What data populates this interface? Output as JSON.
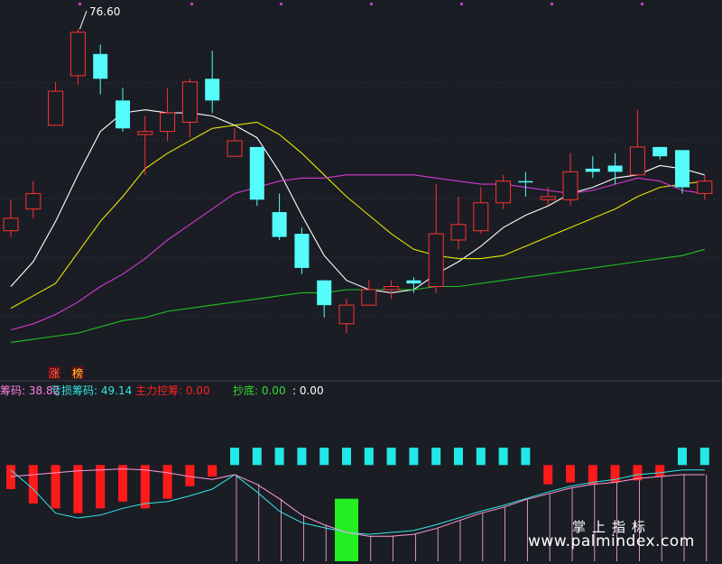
{
  "chart_data": [
    {
      "type": "candlestick",
      "peak_label": "76.60",
      "tags": [
        "涨",
        "榜"
      ],
      "candles": [
        {
          "o": 70.2,
          "c": 70.6,
          "h": 71.2,
          "l": 70.0,
          "color": "up"
        },
        {
          "o": 70.9,
          "c": 71.4,
          "h": 71.8,
          "l": 70.6,
          "color": "up"
        },
        {
          "o": 73.6,
          "c": 74.7,
          "h": 75.0,
          "l": 73.6,
          "color": "up"
        },
        {
          "o": 75.2,
          "c": 76.6,
          "h": 76.7,
          "l": 74.9,
          "color": "up"
        },
        {
          "o": 75.9,
          "c": 75.1,
          "h": 76.2,
          "l": 74.6,
          "color": "down"
        },
        {
          "o": 74.4,
          "c": 73.5,
          "h": 74.8,
          "l": 73.4,
          "color": "down"
        },
        {
          "o": 73.3,
          "c": 73.4,
          "h": 73.9,
          "l": 72.0,
          "color": "up"
        },
        {
          "o": 73.4,
          "c": 74.0,
          "h": 74.8,
          "l": 73.1,
          "color": "up"
        },
        {
          "o": 73.7,
          "c": 75.0,
          "h": 75.1,
          "l": 73.2,
          "color": "up"
        },
        {
          "o": 75.1,
          "c": 74.4,
          "h": 76.0,
          "l": 74.0,
          "color": "down"
        },
        {
          "o": 72.6,
          "c": 73.1,
          "h": 73.5,
          "l": 72.6,
          "color": "up"
        },
        {
          "o": 72.9,
          "c": 71.2,
          "h": 72.9,
          "l": 71.0,
          "color": "down"
        },
        {
          "o": 70.8,
          "c": 70.0,
          "h": 71.4,
          "l": 69.9,
          "color": "down"
        },
        {
          "o": 70.1,
          "c": 69.0,
          "h": 70.3,
          "l": 68.8,
          "color": "down"
        },
        {
          "o": 68.6,
          "c": 67.8,
          "h": 68.6,
          "l": 67.4,
          "color": "down"
        },
        {
          "o": 67.2,
          "c": 67.8,
          "h": 68.0,
          "l": 66.9,
          "color": "up"
        },
        {
          "o": 67.8,
          "c": 68.3,
          "h": 68.6,
          "l": 67.8,
          "color": "up"
        },
        {
          "o": 68.3,
          "c": 68.4,
          "h": 68.6,
          "l": 68.0,
          "color": "up"
        },
        {
          "o": 68.5,
          "c": 68.6,
          "h": 68.7,
          "l": 68.2,
          "color": "down"
        },
        {
          "o": 68.4,
          "c": 70.1,
          "h": 71.7,
          "l": 68.2,
          "color": "up"
        },
        {
          "o": 69.9,
          "c": 70.4,
          "h": 71.3,
          "l": 69.6,
          "color": "up"
        },
        {
          "o": 70.2,
          "c": 71.1,
          "h": 71.6,
          "l": 70.1,
          "color": "up"
        },
        {
          "o": 71.1,
          "c": 71.8,
          "h": 72.0,
          "l": 70.9,
          "color": "up"
        },
        {
          "o": 71.8,
          "c": 71.8,
          "h": 72.1,
          "l": 71.3,
          "color": "down"
        },
        {
          "o": 71.2,
          "c": 71.3,
          "h": 71.6,
          "l": 71.0,
          "color": "up"
        },
        {
          "o": 71.2,
          "c": 72.1,
          "h": 72.7,
          "l": 71.0,
          "color": "up"
        },
        {
          "o": 72.1,
          "c": 72.2,
          "h": 72.6,
          "l": 71.9,
          "color": "down"
        },
        {
          "o": 72.3,
          "c": 72.1,
          "h": 72.7,
          "l": 71.7,
          "color": "down"
        },
        {
          "o": 72.0,
          "c": 72.9,
          "h": 74.1,
          "l": 72.0,
          "color": "up"
        },
        {
          "o": 72.9,
          "c": 72.6,
          "h": 72.9,
          "l": 72.5,
          "color": "down"
        },
        {
          "o": 72.8,
          "c": 71.6,
          "h": 72.8,
          "l": 71.4,
          "color": "down"
        },
        {
          "o": 71.4,
          "c": 71.8,
          "h": 72.0,
          "l": 71.2,
          "color": "up"
        }
      ],
      "ma_lines": [
        {
          "color": "#ffffff",
          "values": [
            68.4,
            69.2,
            70.5,
            72.0,
            73.4,
            74.0,
            74.1,
            74.0,
            74.0,
            73.9,
            73.6,
            73.2,
            72.1,
            70.7,
            69.4,
            68.6,
            68.3,
            68.2,
            68.3,
            68.8,
            69.2,
            69.7,
            70.3,
            70.7,
            71.0,
            71.4,
            71.6,
            71.9,
            72.0,
            72.3,
            72.2,
            72.0
          ]
        },
        {
          "color": "#e8e600",
          "values": [
            67.7,
            68.1,
            68.5,
            69.5,
            70.5,
            71.3,
            72.2,
            72.7,
            73.1,
            73.5,
            73.6,
            73.7,
            73.3,
            72.7,
            72.0,
            71.3,
            70.7,
            70.1,
            69.6,
            69.4,
            69.3,
            69.3,
            69.4,
            69.7,
            70.0,
            70.3,
            70.6,
            70.9,
            71.3,
            71.6,
            71.7,
            71.8
          ]
        },
        {
          "color": "#d43ad4",
          "values": [
            67.0,
            67.2,
            67.5,
            67.9,
            68.4,
            68.8,
            69.3,
            69.9,
            70.4,
            70.9,
            71.4,
            71.6,
            71.8,
            71.9,
            71.9,
            72.0,
            72.0,
            72.0,
            72.0,
            71.9,
            71.8,
            71.7,
            71.7,
            71.6,
            71.5,
            71.4,
            71.5,
            71.7,
            71.9,
            71.8,
            71.5,
            71.4
          ]
        },
        {
          "color": "#1fc21f",
          "values": [
            66.6,
            66.7,
            66.8,
            66.9,
            67.1,
            67.3,
            67.4,
            67.6,
            67.7,
            67.8,
            67.9,
            68.0,
            68.1,
            68.2,
            68.2,
            68.3,
            68.3,
            68.3,
            68.3,
            68.4,
            68.4,
            68.5,
            68.6,
            68.7,
            68.8,
            68.9,
            69.0,
            69.1,
            69.2,
            69.3,
            69.4,
            69.6
          ]
        }
      ],
      "ylim": [
        66.0,
        77.0
      ],
      "grid": true
    },
    {
      "type": "bar",
      "header": [
        {
          "label": "筹码:",
          "value": "38.82",
          "color": "#ff80e0"
        },
        {
          "label": "亏损筹码:",
          "value": "49.14",
          "color": "#33e6e6"
        },
        {
          "label": "主力控筹:",
          "value": "0.00",
          "color": "#ff2020"
        },
        {
          "label": "抄底:",
          "value": "0.00",
          "color": "#33dd33"
        },
        {
          "label": ":",
          "value": "0.00",
          "color": "#ffffff"
        }
      ],
      "baseline": 0,
      "ylim": [
        -100,
        50
      ],
      "bars": [
        {
          "v": -25,
          "c": "red"
        },
        {
          "v": -40,
          "c": "red"
        },
        {
          "v": -45,
          "c": "red"
        },
        {
          "v": -50,
          "c": "red"
        },
        {
          "v": -45,
          "c": "red"
        },
        {
          "v": -38,
          "c": "red"
        },
        {
          "v": -45,
          "c": "red"
        },
        {
          "v": -35,
          "c": "red"
        },
        {
          "v": -22,
          "c": "red"
        },
        {
          "v": -12,
          "c": "red"
        },
        {
          "v": 18,
          "c": "cyan"
        },
        {
          "v": 18,
          "c": "cyan"
        },
        {
          "v": 18,
          "c": "cyan"
        },
        {
          "v": 18,
          "c": "cyan"
        },
        {
          "v": 18,
          "c": "cyan"
        },
        {
          "v": 18,
          "c": "cyan"
        },
        {
          "v": 18,
          "c": "cyan"
        },
        {
          "v": 18,
          "c": "cyan"
        },
        {
          "v": 18,
          "c": "cyan"
        },
        {
          "v": 18,
          "c": "cyan"
        },
        {
          "v": 18,
          "c": "cyan"
        },
        {
          "v": 18,
          "c": "cyan"
        },
        {
          "v": 18,
          "c": "cyan"
        },
        {
          "v": 18,
          "c": "cyan"
        },
        {
          "v": -20,
          "c": "red"
        },
        {
          "v": -18,
          "c": "red"
        },
        {
          "v": -20,
          "c": "red"
        },
        {
          "v": -18,
          "c": "red"
        },
        {
          "v": -16,
          "c": "red"
        },
        {
          "v": -12,
          "c": "red"
        },
        {
          "v": 18,
          "c": "cyan"
        },
        {
          "v": 18,
          "c": "cyan"
        }
      ],
      "green_bar": {
        "index": 15,
        "top": -35,
        "bottom": -100
      },
      "cyan_line": [
        -5,
        -25,
        -50,
        -55,
        -52,
        -45,
        -40,
        -38,
        -32,
        -25,
        -10,
        -28,
        -48,
        -60,
        -65,
        -70,
        -72,
        -70,
        -68,
        -62,
        -55,
        -48,
        -42,
        -35,
        -28,
        -22,
        -18,
        -15,
        -10,
        -8,
        -5,
        -5
      ],
      "pink_line": [
        -12,
        -10,
        -8,
        -6,
        -5,
        -4,
        -5,
        -8,
        -12,
        -15,
        -10,
        -20,
        -35,
        -52,
        -62,
        -70,
        -74,
        -74,
        -72,
        -66,
        -58,
        -50,
        -44,
        -36,
        -30,
        -24,
        -20,
        -18,
        -14,
        -12,
        -10,
        -10
      ]
    }
  ],
  "watermark": {
    "cn": "掌上指标",
    "url": "www.palmindex.com"
  }
}
